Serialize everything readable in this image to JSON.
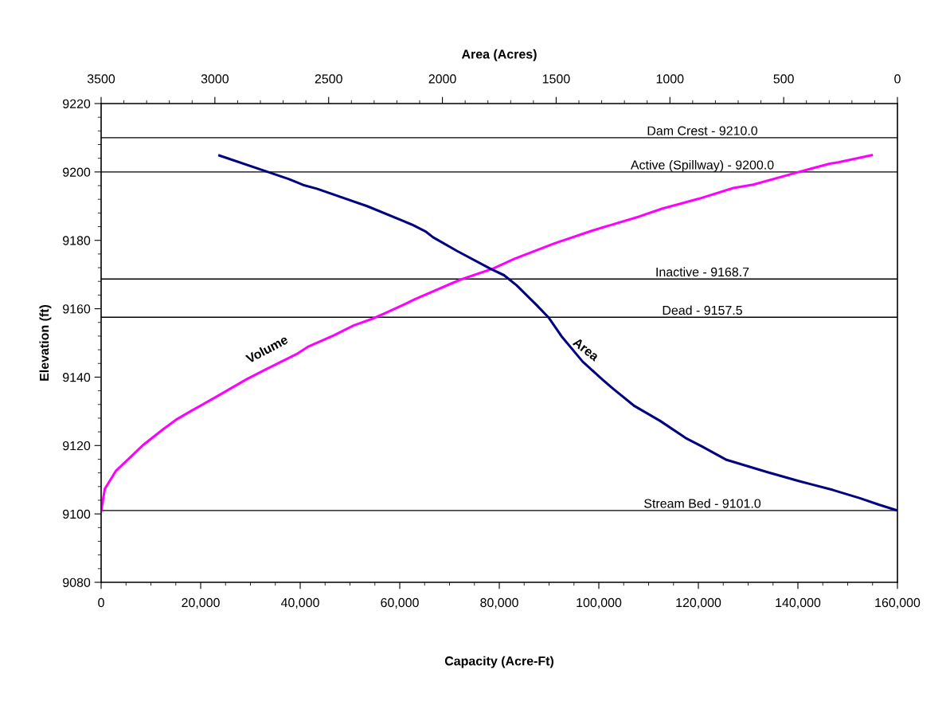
{
  "chart_data": {
    "type": "line",
    "xlabel": "Capacity (Acre-Ft)",
    "ylabel": "Elevation (ft)",
    "x2label": "Area (Acres)",
    "xlim": [
      0,
      160000
    ],
    "xticks": [
      {
        "value": 0,
        "label": "0"
      },
      {
        "value": 20000,
        "label": "20,000"
      },
      {
        "value": 40000,
        "label": "40,000"
      },
      {
        "value": 60000,
        "label": "60,000"
      },
      {
        "value": 80000,
        "label": "80,000"
      },
      {
        "value": 100000,
        "label": "100,000"
      },
      {
        "value": 120000,
        "label": "120,000"
      },
      {
        "value": 140000,
        "label": "140,000"
      },
      {
        "value": 160000,
        "label": "160,000"
      }
    ],
    "x2lim": [
      3500,
      0
    ],
    "x2ticks": [
      3500,
      3000,
      2500,
      2000,
      1500,
      1000,
      500,
      0
    ],
    "ylim": [
      9080,
      9220
    ],
    "yticks": [
      9080,
      9100,
      9120,
      9140,
      9160,
      9180,
      9200,
      9220
    ],
    "grid": false,
    "marker": "none",
    "line_style": "solid",
    "series": [
      {
        "color": "#ff00ff",
        "x": [
          0,
          740,
          2980,
          8320,
          12480,
          15330,
          18080,
          23200,
          29360,
          33280,
          39470,
          41700,
          46720,
          50720,
          54560,
          56880,
          61090,
          63040,
          72000,
          78860,
          83040,
          91040,
          98560,
          108180,
          112800,
          120180,
          127040,
          131040,
          140180,
          146380,
          148100,
          154820
        ],
        "values": [
          9100.8,
          9107.3,
          9112.6,
          9120.0,
          9124.8,
          9127.8,
          9130.1,
          9134.3,
          9139.5,
          9142.4,
          9146.9,
          9149.0,
          9152.2,
          9155.1,
          9157.1,
          9158.6,
          9161.4,
          9162.8,
          9168.4,
          9171.8,
          9174.6,
          9179.1,
          9182.8,
          9187.0,
          9189.3,
          9192.2,
          9195.3,
          9196.3,
          9200.0,
          9202.4,
          9202.8,
          9204.9
        ]
      },
      {
        "color": "#000080",
        "axis": "x2",
        "x": [
          2980,
          2772,
          2674,
          2612,
          2552,
          2331,
          2134,
          2072,
          2041,
          1936,
          1789,
          1729,
          1673,
          1582,
          1533,
          1477,
          1383,
          1295,
          1246,
          1159,
          1043,
          931,
          858,
          751,
          571,
          432,
          284,
          165,
          82,
          0
        ],
        "values": [
          9204.8,
          9200.1,
          9197.9,
          9196.2,
          9195.1,
          9190.0,
          9184.6,
          9182.5,
          9180.9,
          9176.9,
          9171.7,
          9169.8,
          9166.8,
          9160.8,
          9157.4,
          9152.0,
          9144.5,
          9139.2,
          9136.4,
          9131.7,
          9127.2,
          9122.2,
          9119.7,
          9115.8,
          9112.2,
          9109.6,
          9107.0,
          9104.6,
          9102.7,
          9101.0
        ]
      }
    ],
    "ref_lines": [
      {
        "axis": "y",
        "value": 9210.0,
        "label": "Dam Crest - 9210.0",
        "color": "#000000"
      },
      {
        "axis": "y",
        "value": 9200.0,
        "label": "Active (Spillway) - 9200.0",
        "color": "#000000"
      },
      {
        "axis": "y",
        "value": 9168.7,
        "label": "Inactive - 9168.7",
        "color": "#000000"
      },
      {
        "axis": "y",
        "value": 9157.5,
        "label": "Dead - 9157.5",
        "color": "#000000"
      },
      {
        "axis": "y",
        "value": 9101.0,
        "label": "Stream Bed - 9101.0",
        "color": "#000000"
      }
    ],
    "annotations": [
      "Volume",
      "Area"
    ]
  }
}
